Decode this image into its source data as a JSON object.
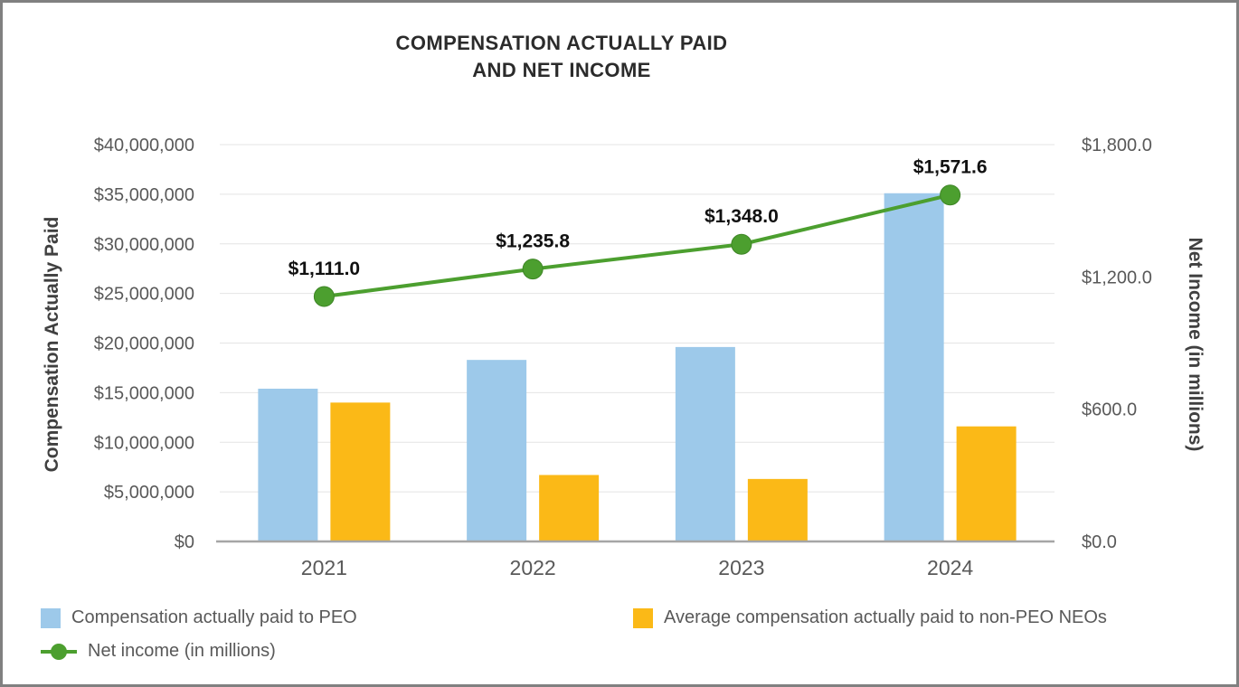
{
  "title": {
    "line1": "COMPENSATION ACTUALLY PAID",
    "line2": "AND NET INCOME"
  },
  "chart_data": {
    "type": "combo",
    "title": "COMPENSATION ACTUALLY PAID AND NET INCOME",
    "categories": [
      "2021",
      "2022",
      "2023",
      "2024"
    ],
    "series": [
      {
        "name": "Compensation actually paid to PEO",
        "type": "bar",
        "axis": "left",
        "color": "#9DC9EA",
        "values": [
          15400000,
          18300000,
          19600000,
          35100000
        ]
      },
      {
        "name": "Average compensation actually paid to non-PEO NEOs",
        "type": "bar",
        "axis": "left",
        "color": "#FBB917",
        "values": [
          14000000,
          6700000,
          6300000,
          11600000
        ]
      },
      {
        "name": "Net income (in millions)",
        "type": "line",
        "axis": "right",
        "color": "#4C9F2F",
        "marker_stroke": "#3E8526",
        "values": [
          1111.0,
          1235.8,
          1348.0,
          1571.6
        ],
        "labels": [
          "$1,111.0",
          "$1,235.8",
          "$1,348.0",
          "$1,571.6"
        ]
      }
    ],
    "ylabel_left": "Compensation Actually Paid",
    "ylabel_right": "Net Income (in millions)",
    "y_left": {
      "min": 0,
      "max": 40000000,
      "step": 5000000,
      "tick_labels": [
        "$0",
        "$5,000,000",
        "$10,000,000",
        "$15,000,000",
        "$20,000,000",
        "$25,000,000",
        "$30,000,000",
        "$35,000,000",
        "$40,000,000"
      ]
    },
    "y_right": {
      "min": 0,
      "max": 1800,
      "step": 600,
      "tick_labels": [
        "$0.0",
        "$600.0",
        "$1,200.0",
        "$1,800.0"
      ]
    },
    "grid": "horizontal",
    "legend_position": "bottom-left",
    "axis_line_color": "#A6A6A6",
    "grid_color": "#E4E4E4"
  }
}
